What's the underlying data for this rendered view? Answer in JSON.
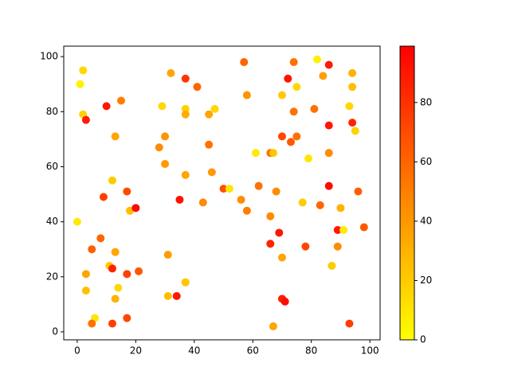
{
  "chart_data": {
    "type": "scatter",
    "x": [
      2,
      1,
      2,
      3,
      10,
      15,
      13,
      12,
      9,
      17,
      18,
      20,
      0,
      8,
      5,
      3,
      11,
      12,
      13,
      3,
      14,
      13,
      17,
      21,
      6,
      5,
      12,
      17,
      32,
      29,
      37,
      41,
      37,
      37,
      30,
      28,
      30,
      37,
      35,
      31,
      31,
      34,
      37,
      37,
      45,
      47,
      45,
      46,
      50,
      52,
      43,
      57,
      58,
      61,
      66,
      67,
      62,
      56,
      58,
      68,
      66,
      66,
      69,
      70,
      67,
      70,
      71,
      74,
      72,
      70,
      75,
      74,
      70,
      73,
      75,
      77,
      78,
      79,
      82,
      86,
      84,
      81,
      86,
      86,
      86,
      83,
      90,
      89,
      91,
      89,
      87,
      93,
      94,
      94,
      94,
      95,
      96,
      98,
      93
    ],
    "y": [
      95,
      90,
      79,
      77,
      82,
      84,
      71,
      55,
      49,
      51,
      44,
      45,
      40,
      34,
      30,
      21,
      24,
      23,
      29,
      15,
      16,
      12,
      21,
      22,
      5,
      3,
      3,
      5,
      94,
      82,
      92,
      89,
      81,
      79,
      71,
      67,
      61,
      57,
      48,
      28,
      13,
      13,
      18,
      18,
      79,
      81,
      68,
      58,
      52,
      52,
      47,
      98,
      86,
      65,
      65,
      65,
      53,
      48,
      44,
      51,
      42,
      32,
      36,
      27,
      2,
      12,
      11,
      98,
      92,
      86,
      89,
      80,
      71,
      69,
      71,
      47,
      31,
      63,
      99,
      97,
      93,
      81,
      75,
      65,
      53,
      46,
      45,
      37,
      37,
      31,
      24,
      82,
      94,
      89,
      76,
      73,
      51,
      38,
      3
    ],
    "c": [
      15,
      5,
      18,
      88,
      90,
      50,
      35,
      20,
      75,
      70,
      25,
      95,
      8,
      60,
      62,
      35,
      20,
      85,
      35,
      25,
      15,
      30,
      75,
      65,
      10,
      55,
      75,
      72,
      35,
      15,
      78,
      60,
      18,
      32,
      42,
      45,
      40,
      35,
      92,
      38,
      25,
      90,
      32,
      22,
      35,
      15,
      55,
      40,
      68,
      10,
      45,
      60,
      42,
      8,
      55,
      22,
      55,
      45,
      50,
      45,
      45,
      85,
      90,
      35,
      35,
      88,
      95,
      55,
      92,
      20,
      15,
      55,
      72,
      65,
      55,
      20,
      72,
      10,
      5,
      88,
      38,
      55,
      90,
      45,
      95,
      60,
      30,
      90,
      8,
      45,
      20,
      15,
      30,
      25,
      85,
      18,
      62,
      65,
      75
    ],
    "colormap": "autumn_r",
    "clim": [
      0,
      99
    ],
    "cticks": [
      0,
      20,
      40,
      60,
      80
    ],
    "xlim": [
      -4.6,
      103.5
    ],
    "ylim": [
      -2.9,
      103.8
    ],
    "xticks": [
      0,
      20,
      40,
      60,
      80,
      100
    ],
    "yticks": [
      0,
      20,
      40,
      60,
      80,
      100
    ]
  }
}
